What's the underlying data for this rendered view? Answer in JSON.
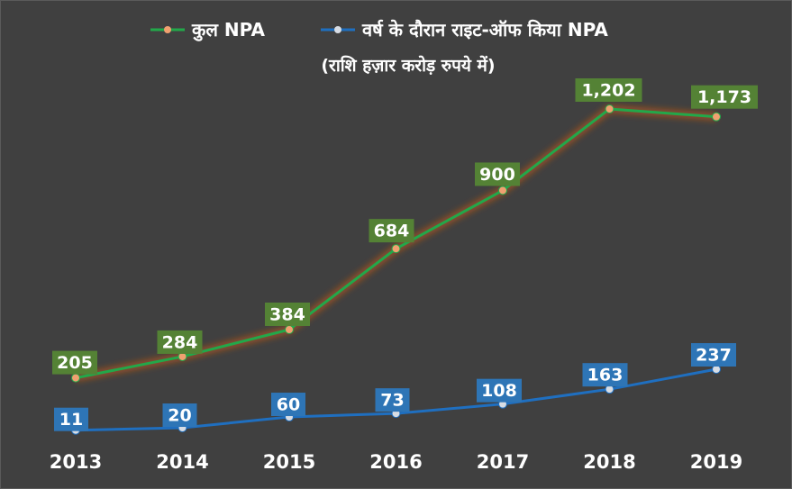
{
  "chart_data": {
    "type": "line",
    "subtitle": "(राशि हज़ार करोड़ रुपये में)",
    "categories": [
      "2013",
      "2014",
      "2015",
      "2016",
      "2017",
      "2018",
      "2019"
    ],
    "series": [
      {
        "name": "कुल NPA",
        "values": [
          205,
          284,
          384,
          684,
          900,
          1202,
          1173
        ],
        "labels": [
          "205",
          "284",
          "384",
          "684",
          "900",
          "1,202",
          "1,173"
        ],
        "line_color": "#22a84a",
        "marker_color": "#f0a070",
        "label_bg": "#548235",
        "glow_color": "#d05a1a"
      },
      {
        "name": "वर्ष के दौरान राइट-ऑफ किया NPA",
        "values": [
          11,
          20,
          60,
          73,
          108,
          163,
          237
        ],
        "labels": [
          "11",
          "20",
          "60",
          "73",
          "108",
          "163",
          "237"
        ],
        "line_color": "#1f6fc0",
        "marker_color": "#d8dde4",
        "label_bg": "#2e75b6",
        "glow_color": ""
      }
    ],
    "ylim": [
      0,
      1300
    ],
    "grid": false,
    "legend_position": "top"
  }
}
